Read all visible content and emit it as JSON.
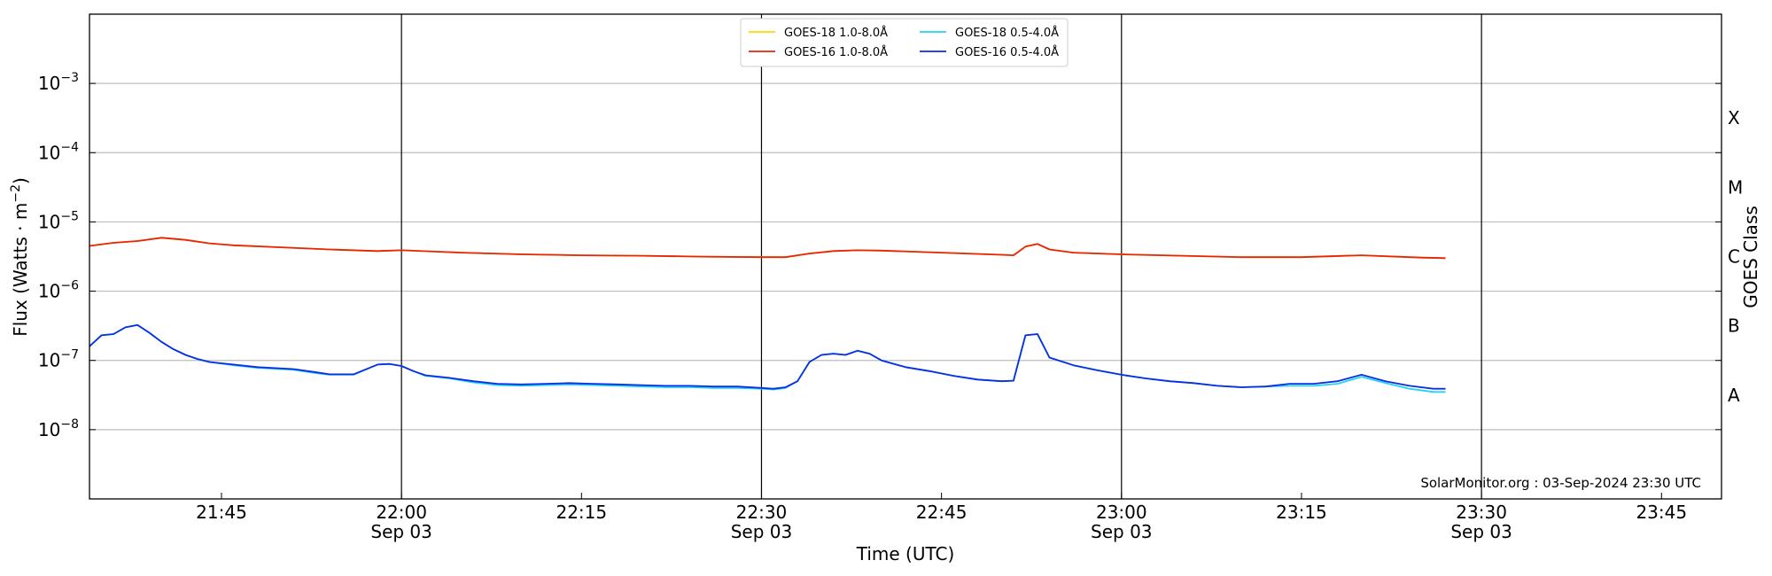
{
  "chart_data": {
    "type": "line",
    "ylabel_main": "Flux (Watts · m",
    "ylabel_sup": "−2",
    "ylabel_close": ")",
    "xlabel": "Time (UTC)",
    "right_axis_label": "GOES Class",
    "y_scale": "log",
    "ylim": [
      1e-09,
      0.01
    ],
    "xlim": [
      "21:34",
      "23:50"
    ],
    "grid": "horizontal",
    "legend_position": "top-center",
    "annotation": "SolarMonitor.org : 03-Sep-2024 23:30 UTC",
    "y_ticks": [
      {
        "value": 1e-08,
        "base": "10",
        "exp": "−8"
      },
      {
        "value": 1e-07,
        "base": "10",
        "exp": "−7"
      },
      {
        "value": 1e-06,
        "base": "10",
        "exp": "−6"
      },
      {
        "value": 1e-05,
        "base": "10",
        "exp": "−5"
      },
      {
        "value": 0.0001,
        "base": "10",
        "exp": "−4"
      },
      {
        "value": 0.001,
        "base": "10",
        "exp": "−3"
      }
    ],
    "x_ticks": [
      {
        "time": "21:45",
        "label": "21:45",
        "date": ""
      },
      {
        "time": "22:00",
        "label": "22:00",
        "date": "Sep 03"
      },
      {
        "time": "22:15",
        "label": "22:15",
        "date": ""
      },
      {
        "time": "22:30",
        "label": "22:30",
        "date": "Sep 03"
      },
      {
        "time": "22:45",
        "label": "22:45",
        "date": ""
      },
      {
        "time": "23:00",
        "label": "23:00",
        "date": "Sep 03"
      },
      {
        "time": "23:15",
        "label": "23:15",
        "date": ""
      },
      {
        "time": "23:30",
        "label": "23:30",
        "date": "Sep 03"
      },
      {
        "time": "23:45",
        "label": "23:45",
        "date": ""
      }
    ],
    "vertical_lines": [
      "22:00",
      "22:30",
      "23:00",
      "23:30"
    ],
    "goes_classes": [
      {
        "label": "A",
        "value": 3.16e-08
      },
      {
        "label": "B",
        "value": 3.16e-07
      },
      {
        "label": "C",
        "value": 3.16e-06
      },
      {
        "label": "M",
        "value": 3.16e-05
      },
      {
        "label": "X",
        "value": 0.000316
      }
    ],
    "series": [
      {
        "name": "GOES-18 1.0-8.0Å",
        "color": "#ffd700",
        "times": [
          "21:34",
          "21:36",
          "21:38",
          "21:40",
          "21:42",
          "21:44",
          "21:46",
          "21:50",
          "21:54",
          "21:58",
          "22:00",
          "22:05",
          "22:10",
          "22:15",
          "22:20",
          "22:25",
          "22:30",
          "22:32",
          "22:34",
          "22:36",
          "22:38",
          "22:40",
          "22:45",
          "22:50",
          "22:51",
          "22:52",
          "22:53",
          "22:54",
          "22:56",
          "23:00",
          "23:05",
          "23:10",
          "23:15",
          "23:20",
          "23:25",
          "23:27"
        ],
        "values": [
          4.5e-06,
          5e-06,
          5.3e-06,
          5.9e-06,
          5.5e-06,
          4.9e-06,
          4.6e-06,
          4.3e-06,
          4e-06,
          3.8e-06,
          3.9e-06,
          3.6e-06,
          3.4e-06,
          3.3e-06,
          3.25e-06,
          3.15e-06,
          3.1e-06,
          3.1e-06,
          3.5e-06,
          3.8e-06,
          3.9e-06,
          3.85e-06,
          3.6e-06,
          3.35e-06,
          3.3e-06,
          4.4e-06,
          4.8e-06,
          4e-06,
          3.6e-06,
          3.4e-06,
          3.25e-06,
          3.1e-06,
          3.1e-06,
          3.3e-06,
          3.05e-06,
          3e-06
        ]
      },
      {
        "name": "GOES-16 1.0-8.0Å",
        "color": "#e8240b",
        "times": [
          "21:34",
          "21:36",
          "21:38",
          "21:40",
          "21:42",
          "21:44",
          "21:46",
          "21:50",
          "21:54",
          "21:58",
          "22:00",
          "22:05",
          "22:10",
          "22:15",
          "22:20",
          "22:25",
          "22:30",
          "22:32",
          "22:34",
          "22:36",
          "22:38",
          "22:40",
          "22:45",
          "22:50",
          "22:51",
          "22:52",
          "22:53",
          "22:54",
          "22:56",
          "23:00",
          "23:05",
          "23:10",
          "23:15",
          "23:20",
          "23:25",
          "23:27"
        ],
        "values": [
          4.5e-06,
          5e-06,
          5.3e-06,
          5.9e-06,
          5.5e-06,
          4.9e-06,
          4.6e-06,
          4.3e-06,
          4e-06,
          3.8e-06,
          3.9e-06,
          3.6e-06,
          3.4e-06,
          3.3e-06,
          3.25e-06,
          3.15e-06,
          3.1e-06,
          3.1e-06,
          3.5e-06,
          3.8e-06,
          3.9e-06,
          3.85e-06,
          3.6e-06,
          3.35e-06,
          3.3e-06,
          4.4e-06,
          4.8e-06,
          4e-06,
          3.6e-06,
          3.4e-06,
          3.25e-06,
          3.1e-06,
          3.1e-06,
          3.3e-06,
          3.05e-06,
          3e-06
        ]
      },
      {
        "name": "GOES-18 0.5-4.0Å",
        "color": "#22d3f5",
        "times": [
          "21:34",
          "21:35",
          "21:36",
          "21:37",
          "21:38",
          "21:39",
          "21:40",
          "21:41",
          "21:42",
          "21:43",
          "21:44",
          "21:46",
          "21:48",
          "21:51",
          "21:53",
          "21:54",
          "21:56",
          "21:58",
          "21:59",
          "22:00",
          "22:01",
          "22:02",
          "22:04",
          "22:06",
          "22:08",
          "22:10",
          "22:12",
          "22:14",
          "22:16",
          "22:18",
          "22:20",
          "22:22",
          "22:24",
          "22:26",
          "22:28",
          "22:30",
          "22:31",
          "22:32",
          "22:33",
          "22:34",
          "22:35",
          "22:36",
          "22:37",
          "22:38",
          "22:39",
          "22:40",
          "22:42",
          "22:44",
          "22:46",
          "22:48",
          "22:50",
          "22:51",
          "22:52",
          "22:53",
          "22:54",
          "22:56",
          "22:58",
          "23:00",
          "23:02",
          "23:04",
          "23:06",
          "23:08",
          "23:10",
          "23:12",
          "23:14",
          "23:16",
          "23:18",
          "23:20",
          "23:22",
          "23:24",
          "23:26",
          "23:27"
        ],
        "values": [
          1.6e-07,
          2.3e-07,
          2.4e-07,
          3e-07,
          3.25e-07,
          2.5e-07,
          1.85e-07,
          1.45e-07,
          1.2e-07,
          1.05e-07,
          9.5e-08,
          8.5e-08,
          7.8e-08,
          7.3e-08,
          6.5e-08,
          6.2e-08,
          6.2e-08,
          8.7e-08,
          8.9e-08,
          8.3e-08,
          7e-08,
          6e-08,
          5.5e-08,
          4.8e-08,
          4.4e-08,
          4.3e-08,
          4.4e-08,
          4.5e-08,
          4.4e-08,
          4.3e-08,
          4.2e-08,
          4.1e-08,
          4.1e-08,
          4e-08,
          4e-08,
          3.9e-08,
          3.8e-08,
          4e-08,
          5e-08,
          9.5e-08,
          1.2e-07,
          1.25e-07,
          1.2e-07,
          1.38e-07,
          1.25e-07,
          1e-07,
          8e-08,
          7e-08,
          6e-08,
          5.3e-08,
          5e-08,
          5.1e-08,
          2.3e-07,
          2.4e-07,
          1.1e-07,
          8.5e-08,
          7.2e-08,
          6.2e-08,
          5.5e-08,
          5e-08,
          4.7e-08,
          4.3e-08,
          4.1e-08,
          4.2e-08,
          4.3e-08,
          4.3e-08,
          4.6e-08,
          5.8e-08,
          4.7e-08,
          3.9e-08,
          3.5e-08,
          3.5e-08
        ]
      },
      {
        "name": "GOES-16 0.5-4.0Å",
        "color": "#0b2de3",
        "times": [
          "21:34",
          "21:35",
          "21:36",
          "21:37",
          "21:38",
          "21:39",
          "21:40",
          "21:41",
          "21:42",
          "21:43",
          "21:44",
          "21:46",
          "21:48",
          "21:51",
          "21:53",
          "21:54",
          "21:56",
          "21:58",
          "21:59",
          "22:00",
          "22:01",
          "22:02",
          "22:04",
          "22:06",
          "22:08",
          "22:10",
          "22:12",
          "22:14",
          "22:16",
          "22:18",
          "22:20",
          "22:22",
          "22:24",
          "22:26",
          "22:28",
          "22:30",
          "22:31",
          "22:32",
          "22:33",
          "22:34",
          "22:35",
          "22:36",
          "22:37",
          "22:38",
          "22:39",
          "22:40",
          "22:42",
          "22:44",
          "22:46",
          "22:48",
          "22:50",
          "22:51",
          "22:52",
          "22:53",
          "22:54",
          "22:56",
          "22:58",
          "23:00",
          "23:02",
          "23:04",
          "23:06",
          "23:08",
          "23:10",
          "23:12",
          "23:14",
          "23:16",
          "23:18",
          "23:20",
          "23:22",
          "23:24",
          "23:26",
          "23:27"
        ],
        "values": [
          1.6e-07,
          2.3e-07,
          2.4e-07,
          3e-07,
          3.25e-07,
          2.5e-07,
          1.85e-07,
          1.45e-07,
          1.2e-07,
          1.05e-07,
          9.5e-08,
          8.7e-08,
          8e-08,
          7.5e-08,
          6.7e-08,
          6.3e-08,
          6.3e-08,
          8.7e-08,
          8.9e-08,
          8.3e-08,
          7e-08,
          6.1e-08,
          5.6e-08,
          5e-08,
          4.6e-08,
          4.5e-08,
          4.6e-08,
          4.7e-08,
          4.6e-08,
          4.5e-08,
          4.4e-08,
          4.3e-08,
          4.3e-08,
          4.2e-08,
          4.2e-08,
          4e-08,
          3.9e-08,
          4.1e-08,
          5e-08,
          9.5e-08,
          1.2e-07,
          1.25e-07,
          1.2e-07,
          1.38e-07,
          1.25e-07,
          1e-07,
          8e-08,
          7e-08,
          6e-08,
          5.3e-08,
          5e-08,
          5.1e-08,
          2.3e-07,
          2.4e-07,
          1.1e-07,
          8.5e-08,
          7.2e-08,
          6.2e-08,
          5.5e-08,
          5e-08,
          4.7e-08,
          4.3e-08,
          4.1e-08,
          4.2e-08,
          4.6e-08,
          4.6e-08,
          5e-08,
          6.2e-08,
          5e-08,
          4.3e-08,
          3.9e-08,
          3.9e-08
        ]
      }
    ]
  }
}
